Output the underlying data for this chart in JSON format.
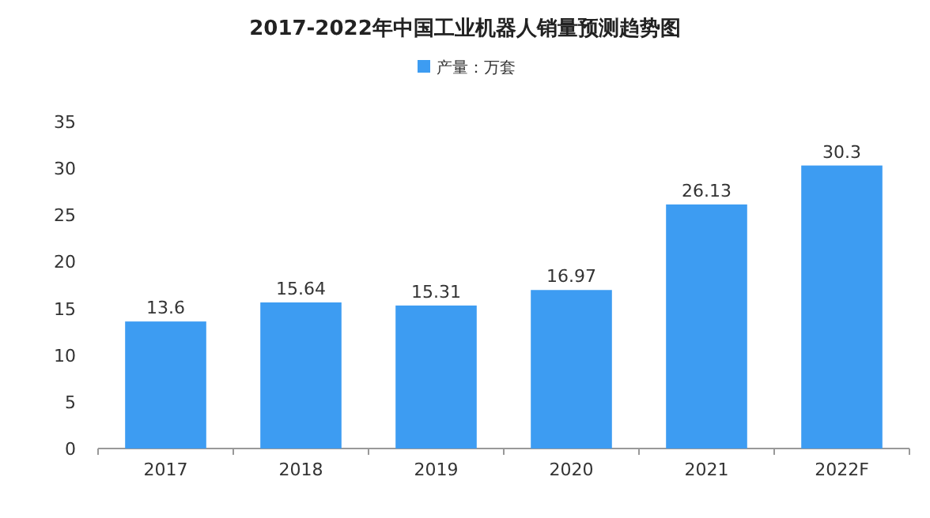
{
  "chart_data": {
    "type": "bar",
    "title": "2017-2022年中国工业机器人销量预测趋势图",
    "categories": [
      "2017",
      "2018",
      "2019",
      "2020",
      "2021",
      "2022F"
    ],
    "series": [
      {
        "name": "产量：万套",
        "color": "#3d9cf2",
        "values": [
          13.6,
          15.64,
          15.31,
          16.97,
          26.13,
          30.3
        ]
      }
    ],
    "ylim": [
      0,
      35
    ],
    "yticks": [
      0,
      5,
      10,
      15,
      20,
      25,
      30,
      35
    ],
    "data_labels": true,
    "legend": "top"
  }
}
